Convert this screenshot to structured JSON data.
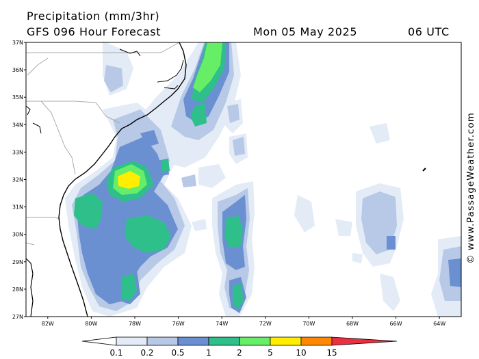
{
  "header": {
    "title": "Precipitation (mm/3hr)",
    "subtitle": "GFS 096 Hour Forecast",
    "valid_date": "Mon 05 May 2025",
    "valid_time": "06 UTC"
  },
  "credit": "© www.PassageWeather.com",
  "map": {
    "lat_labels": [
      "37N",
      "36N",
      "35N",
      "34N",
      "33N",
      "32N",
      "31N",
      "30N",
      "29N",
      "28N",
      "27N"
    ],
    "lon_labels": [
      "82W",
      "80W",
      "78W",
      "76W",
      "74W",
      "72W",
      "70W",
      "68W",
      "66W",
      "64W"
    ],
    "lat_range": [
      27,
      37
    ],
    "lon_range": [
      -83,
      -63
    ]
  },
  "colorbar": {
    "labels": [
      "0.1",
      "0.2",
      "0.5",
      "1",
      "2",
      "5",
      "10",
      "15"
    ],
    "colors": [
      "#ffffff",
      "#e3ebf6",
      "#b7c9e6",
      "#6a90d2",
      "#2fbf8a",
      "#66ee66",
      "#ffee00",
      "#ff8800",
      "#e83040"
    ]
  }
}
